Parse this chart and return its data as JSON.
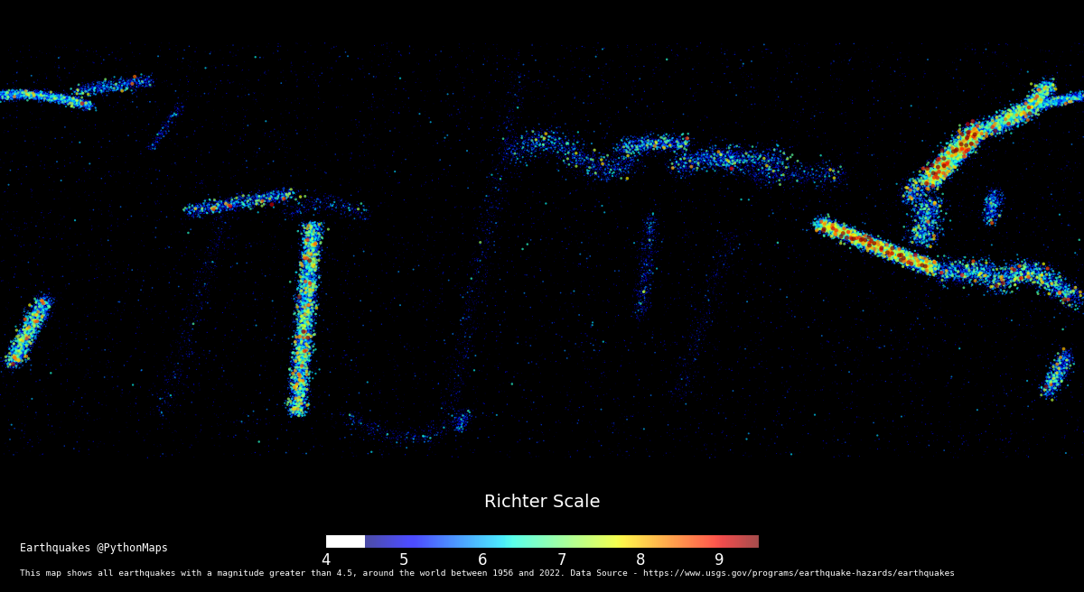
{
  "title": "Richter Scale",
  "colorbar_label": "Richter Scale",
  "colorbar_ticks": [
    4,
    5,
    6,
    7,
    8,
    9
  ],
  "mag_min": 4.5,
  "mag_max": 9.5,
  "background_color": "#000000",
  "land_color": "#000000",
  "ocean_color": "#000000",
  "border_color": "#ffffff",
  "text_color": "#ffffff",
  "credit_line1": "Earthquakes @PythonMaps",
  "credit_line2": "This map shows all earthquakes with a magnitude greater than 4.5, around the world between 1956 and 2022. Data Source - https://www.usgs.gov/programs/earthquake-hazards/earthquakes",
  "marker_size": 1.5,
  "alpha": 0.7,
  "cmap": "jet",
  "figsize": [
    12.0,
    6.56
  ],
  "dpi": 100
}
